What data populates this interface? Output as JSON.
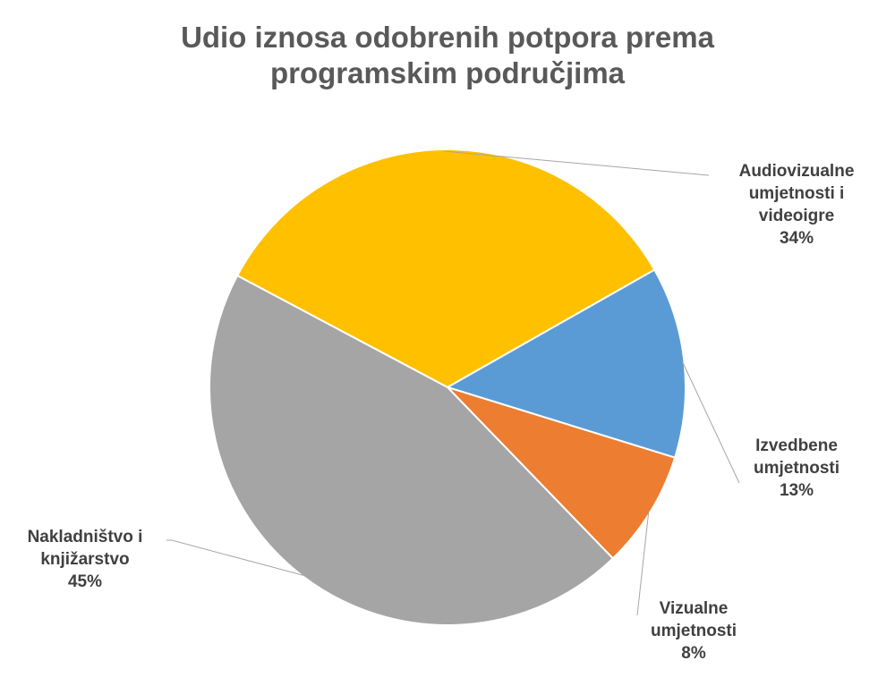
{
  "chart_data": {
    "type": "pie",
    "title": [
      "Udio iznosa odobrenih potpora prema",
      "programskim područjima"
    ],
    "slices": [
      {
        "label": [
          "Audiovizualne",
          "umjetnosti i",
          "videoigre"
        ],
        "value": 34,
        "value_label": "34%",
        "color": "#FFC000"
      },
      {
        "label": [
          "Izvedbene",
          "umjetnosti"
        ],
        "value": 13,
        "value_label": "13%",
        "color": "#5B9BD5"
      },
      {
        "label": [
          "Vizualne",
          "umjetnosti"
        ],
        "value": 8,
        "value_label": "8%",
        "color": "#ED7D31"
      },
      {
        "label": [
          "Nakladništvo i",
          "knjižarstvo"
        ],
        "value": 45,
        "value_label": "45%",
        "color": "#A5A5A5"
      }
    ],
    "legend": "none",
    "data_labels": "outside-with-leader-lines"
  }
}
